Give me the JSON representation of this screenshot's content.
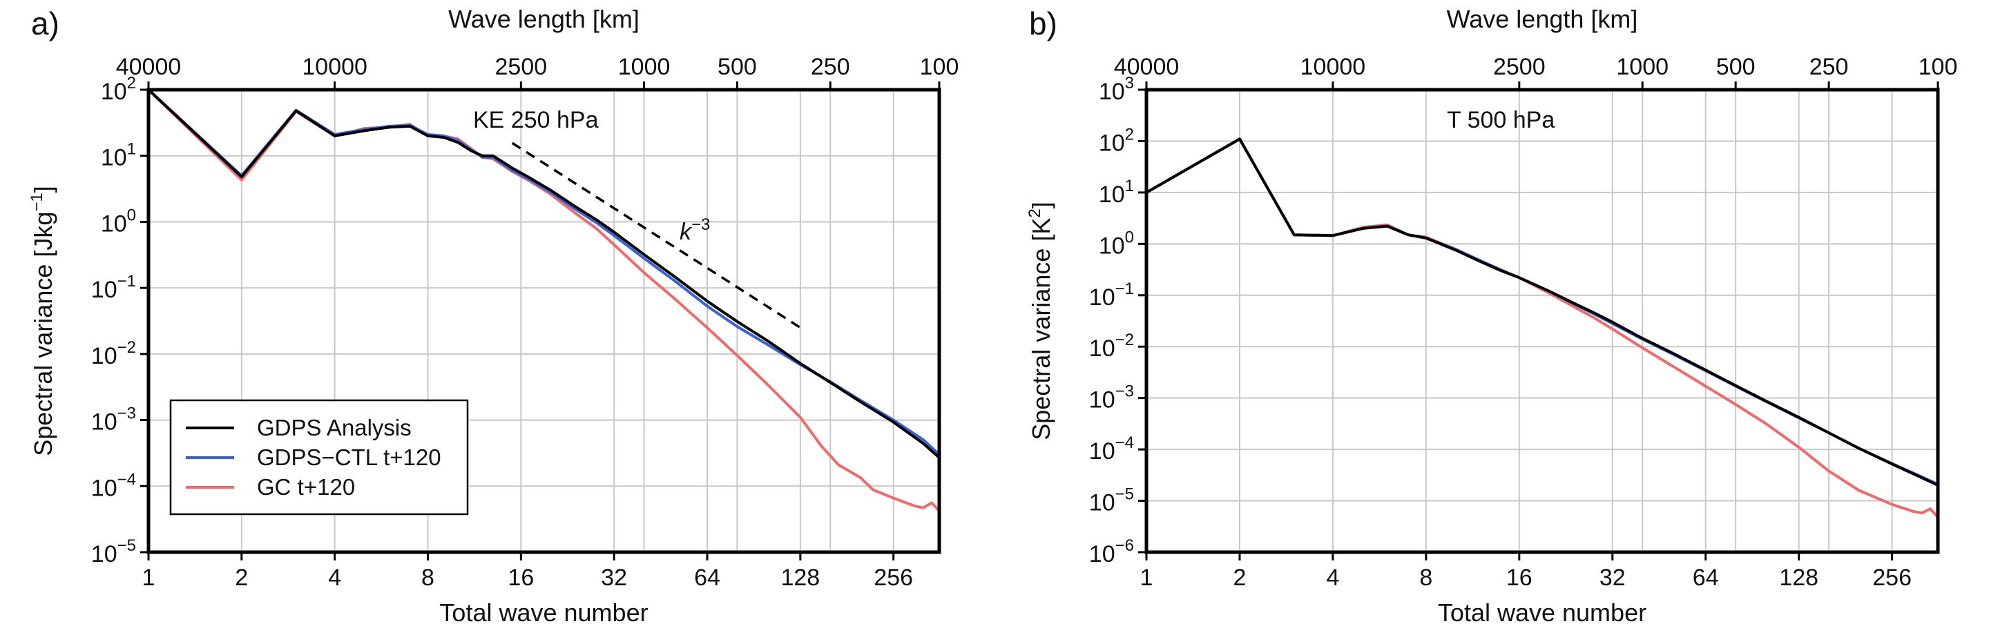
{
  "chart_data": [
    {
      "type": "line",
      "panel_label": "a)",
      "annotation": "KE 250 hPa",
      "xlabel": "Total wave number",
      "ylabel_main": "Spectral variance [Jkg",
      "ylabel_sup": "−1",
      "ylabel_end": "]",
      "x_scale": "log2",
      "y_scale": "log10",
      "xlim": [
        1,
        360
      ],
      "ylim_exp": [
        -5,
        2
      ],
      "x_ticks": [
        1,
        2,
        4,
        8,
        16,
        32,
        64,
        128,
        256
      ],
      "x_tick_labels": [
        "1",
        "2",
        "4",
        "8",
        "16",
        "32",
        "64",
        "128",
        "256"
      ],
      "y_tick_exps": [
        -5,
        -4,
        -3,
        -2,
        -1,
        0,
        1,
        2
      ],
      "y_tick_base": "10",
      "y_tick_sups": [
        "−5",
        "−4",
        "−3",
        "−2",
        "−1",
        "0",
        "1",
        "2"
      ],
      "top_axis": {
        "label": "Wave length [km]",
        "tick_labels": [
          "40000",
          "10000",
          "2500",
          "1000",
          "500",
          "250",
          "100"
        ],
        "tick_wavenumbers": [
          1,
          4,
          16,
          40,
          80,
          160,
          360
        ]
      },
      "reference_line": {
        "label_base": "k",
        "label_sup": "−3",
        "x": [
          15,
          130
        ],
        "y": [
          15.6,
          0.0239
        ]
      },
      "legend": {
        "position": "lower-left",
        "entries": [
          "GDPS Analysis",
          "GDPS−CTL t+120",
          "GC t+120"
        ]
      },
      "series": [
        {
          "name": "GDPS Analysis",
          "color": "#000000",
          "x": [
            1,
            2,
            3,
            4,
            5,
            6,
            7,
            8,
            9,
            10,
            11,
            12,
            13,
            15,
            17,
            20,
            24,
            28,
            32,
            40,
            50,
            64,
            80,
            100,
            128,
            160,
            200,
            256,
            320,
            360
          ],
          "y": [
            100,
            4.8,
            48,
            20,
            24,
            27,
            28,
            20,
            19,
            16,
            12,
            10,
            10,
            6.5,
            4.7,
            3.0,
            1.7,
            1.08,
            0.7,
            0.32,
            0.15,
            0.063,
            0.031,
            0.016,
            0.0072,
            0.0037,
            0.0019,
            0.00093,
            0.00044,
            0.00027
          ]
        },
        {
          "name": "GDPS−CTL t+120",
          "color": "#3a62d8",
          "x": [
            1,
            2,
            3,
            4,
            5,
            6,
            7,
            8,
            9,
            10,
            11,
            12,
            13,
            15,
            17,
            20,
            24,
            28,
            32,
            40,
            50,
            64,
            80,
            100,
            128,
            160,
            200,
            256,
            320,
            360
          ],
          "y": [
            100,
            5.0,
            49,
            21,
            25,
            28,
            29,
            21,
            20,
            17,
            12.5,
            9.5,
            9.5,
            6.0,
            4.4,
            2.8,
            1.55,
            0.98,
            0.62,
            0.28,
            0.13,
            0.053,
            0.026,
            0.014,
            0.0069,
            0.0038,
            0.002,
            0.001,
            0.0005,
            0.0003
          ]
        },
        {
          "name": "GC t+120",
          "color": "#f06a6a",
          "x": [
            1,
            2,
            3,
            4,
            5,
            6,
            7,
            8,
            9,
            10,
            11,
            12,
            13,
            15,
            17,
            20,
            24,
            28,
            32,
            40,
            50,
            64,
            80,
            100,
            128,
            150,
            170,
            200,
            220,
            256,
            300,
            320,
            340,
            360
          ],
          "y": [
            100,
            4.3,
            47,
            20,
            26,
            27,
            30,
            20,
            20,
            18,
            13,
            9.5,
            9.0,
            5.8,
            4.2,
            2.6,
            1.35,
            0.8,
            0.45,
            0.17,
            0.07,
            0.025,
            0.0095,
            0.0035,
            0.0011,
            0.0004,
            0.00021,
            0.000135,
            8.8e-05,
            6.6e-05,
            5e-05,
            4.7e-05,
            5.6e-05,
            4.2e-05
          ]
        }
      ]
    },
    {
      "type": "line",
      "panel_label": "b)",
      "annotation": "T 500 hPa",
      "xlabel": "Total wave number",
      "ylabel_main": "Spectral variance [K",
      "ylabel_sup": "2",
      "ylabel_end": "]",
      "x_scale": "log2",
      "y_scale": "log10",
      "xlim": [
        1,
        360
      ],
      "ylim_exp": [
        -6,
        3
      ],
      "x_ticks": [
        1,
        2,
        4,
        8,
        16,
        32,
        64,
        128,
        256
      ],
      "x_tick_labels": [
        "1",
        "2",
        "4",
        "8",
        "16",
        "32",
        "64",
        "128",
        "256"
      ],
      "y_tick_exps": [
        -6,
        -5,
        -4,
        -3,
        -2,
        -1,
        0,
        1,
        2,
        3
      ],
      "y_tick_base": "10",
      "y_tick_sups": [
        "−6",
        "−5",
        "−4",
        "−3",
        "−2",
        "−1",
        "0",
        "1",
        "2",
        "3"
      ],
      "top_axis": {
        "label": "Wave length [km]",
        "tick_labels": [
          "40000",
          "10000",
          "2500",
          "1000",
          "500",
          "250",
          "100"
        ],
        "tick_wavenumbers": [
          1,
          4,
          16,
          40,
          80,
          160,
          360
        ]
      },
      "series": [
        {
          "name": "GDPS Analysis",
          "color": "#000000",
          "x": [
            1,
            2,
            3,
            4,
            5,
            6,
            7,
            8,
            10,
            12,
            14,
            16,
            20,
            24,
            28,
            32,
            40,
            50,
            64,
            80,
            100,
            128,
            160,
            200,
            256,
            320,
            360
          ],
          "y": [
            10,
            110,
            1.5,
            1.45,
            2.0,
            2.2,
            1.5,
            1.3,
            0.75,
            0.45,
            0.3,
            0.22,
            0.12,
            0.07,
            0.045,
            0.03,
            0.0145,
            0.0075,
            0.0035,
            0.00175,
            0.00088,
            0.00042,
            0.00021,
            0.000105,
            5.2e-05,
            2.8e-05,
            2e-05
          ]
        },
        {
          "name": "GDPS−CTL t+120",
          "color": "#3a62d8",
          "x": [
            1,
            2,
            3,
            4,
            5,
            6,
            7,
            8,
            10,
            12,
            14,
            16,
            20,
            24,
            28,
            32,
            40,
            50,
            64,
            80,
            100,
            128,
            160,
            200,
            256,
            320,
            360
          ],
          "y": [
            10,
            110,
            1.5,
            1.45,
            2.0,
            2.25,
            1.5,
            1.3,
            0.78,
            0.47,
            0.31,
            0.22,
            0.12,
            0.068,
            0.043,
            0.028,
            0.014,
            0.0072,
            0.0034,
            0.0017,
            0.00086,
            0.00041,
            0.00021,
            0.000105,
            5.3e-05,
            2.9e-05,
            2.1e-05
          ]
        },
        {
          "name": "GC t+120",
          "color": "#f06a6a",
          "x": [
            1,
            2,
            3,
            4,
            5,
            6,
            7,
            8,
            10,
            12,
            14,
            16,
            20,
            24,
            28,
            32,
            40,
            50,
            64,
            80,
            100,
            128,
            160,
            200,
            256,
            300,
            320,
            340,
            360
          ],
          "y": [
            10,
            110,
            1.5,
            1.45,
            2.1,
            2.35,
            1.5,
            1.35,
            0.78,
            0.45,
            0.3,
            0.22,
            0.11,
            0.06,
            0.036,
            0.022,
            0.0095,
            0.0042,
            0.0017,
            0.00075,
            0.00032,
            0.00011,
            3.8e-05,
            1.6e-05,
            8.5e-06,
            6.2e-06,
            5.8e-06,
            7e-06,
            4.8e-06
          ]
        }
      ]
    }
  ]
}
